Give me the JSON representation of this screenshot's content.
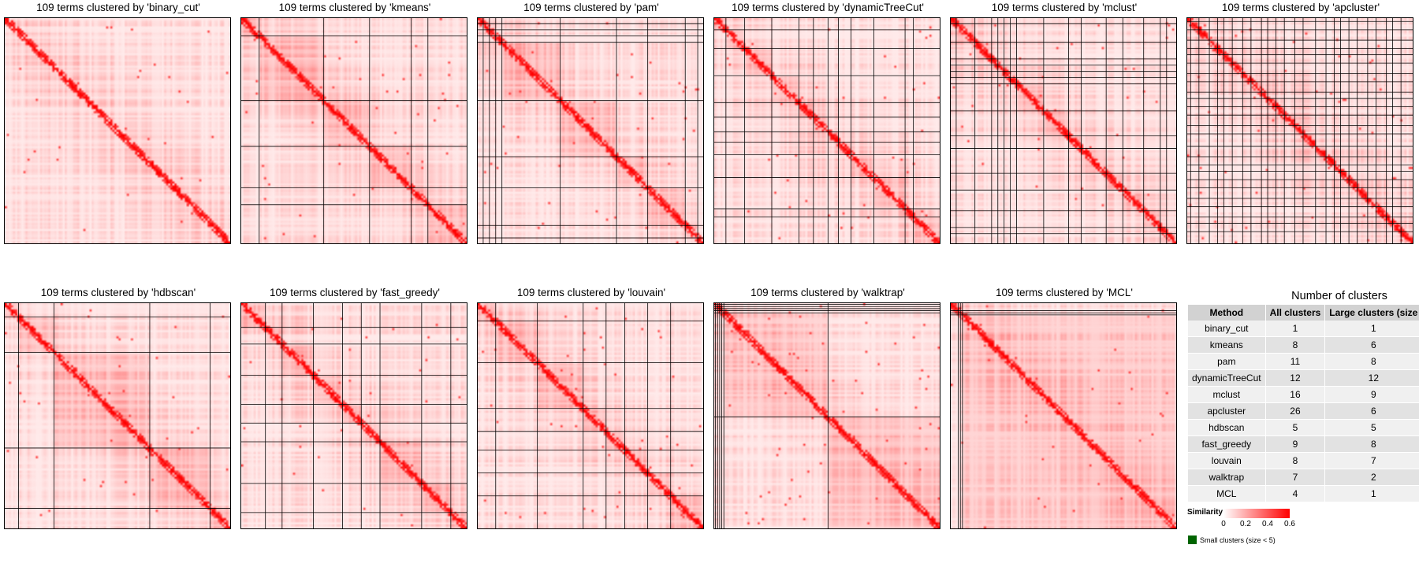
{
  "panels": [
    {
      "title": "109 terms clustered by 'binary_cut'",
      "method": "binary_cut"
    },
    {
      "title": "109 terms clustered by 'kmeans'",
      "method": "kmeans"
    },
    {
      "title": "109 terms clustered by 'pam'",
      "method": "pam"
    },
    {
      "title": "109 terms clustered by 'dynamicTreeCut'",
      "method": "dynamicTreeCut"
    },
    {
      "title": "109 terms clustered by 'mclust'",
      "method": "mclust"
    },
    {
      "title": "109 terms clustered by 'apcluster'",
      "method": "apcluster"
    },
    {
      "title": "109 terms clustered by 'hdbscan'",
      "method": "hdbscan"
    },
    {
      "title": "109 terms clustered by 'fast_greedy'",
      "method": "fast_greedy"
    },
    {
      "title": "109 terms clustered by 'louvain'",
      "method": "louvain"
    },
    {
      "title": "109 terms clustered by 'walktrap'",
      "method": "walktrap"
    },
    {
      "title": "109 terms clustered by 'MCL'",
      "method": "MCL"
    }
  ],
  "chart_data": {
    "type": "heatmap",
    "n_terms": 109,
    "color_scale": {
      "min": 0,
      "max": 0.6,
      "low_color": "#ffffff",
      "high_color": "#ff0000"
    },
    "small_cluster_color": "#006400",
    "summary_table": {
      "title": "Number of clusters",
      "columns": [
        "Method",
        "All clusters",
        "Large clusters (size"
      ],
      "rows": [
        {
          "method": "binary_cut",
          "all": 1,
          "large": 1
        },
        {
          "method": "kmeans",
          "all": 8,
          "large": 6
        },
        {
          "method": "pam",
          "all": 11,
          "large": 8
        },
        {
          "method": "dynamicTreeCut",
          "all": 12,
          "large": 12
        },
        {
          "method": "mclust",
          "all": 16,
          "large": 9
        },
        {
          "method": "apcluster",
          "all": 26,
          "large": 6
        },
        {
          "method": "hdbscan",
          "all": 5,
          "large": 5
        },
        {
          "method": "fast_greedy",
          "all": 9,
          "large": 8
        },
        {
          "method": "louvain",
          "all": 8,
          "large": 7
        },
        {
          "method": "walktrap",
          "all": 7,
          "large": 2
        },
        {
          "method": "MCL",
          "all": 4,
          "large": 1
        }
      ]
    }
  },
  "legend": {
    "title": "Similarity",
    "ticks": [
      "0",
      "0.2",
      "0.4",
      "0.6"
    ],
    "small_clusters_label": "Small clusters (size < 5)"
  }
}
